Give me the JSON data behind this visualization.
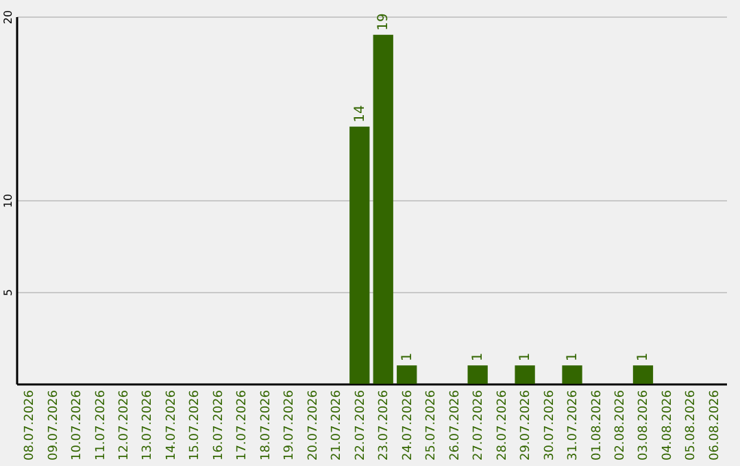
{
  "chart_data": {
    "type": "bar",
    "categories": [
      "08.07.2026",
      "09.07.2026",
      "10.07.2026",
      "11.07.2026",
      "12.07.2026",
      "13.07.2026",
      "14.07.2026",
      "15.07.2026",
      "16.07.2026",
      "17.07.2026",
      "18.07.2026",
      "19.07.2026",
      "20.07.2026",
      "21.07.2026",
      "22.07.2026",
      "23.07.2026",
      "24.07.2026",
      "25.07.2026",
      "26.07.2026",
      "27.07.2026",
      "28.07.2026",
      "29.07.2026",
      "30.07.2026",
      "31.07.2026",
      "01.08.2026",
      "02.08.2026",
      "03.08.2026",
      "04.08.2026",
      "05.08.2026",
      "06.08.2026"
    ],
    "values": [
      0,
      0,
      0,
      0,
      0,
      0,
      0,
      0,
      0,
      0,
      0,
      0,
      0,
      0,
      14,
      19,
      1,
      0,
      0,
      1,
      0,
      1,
      0,
      1,
      0,
      0,
      1,
      0,
      0,
      0
    ],
    "value_labels": [
      null,
      null,
      null,
      null,
      null,
      null,
      null,
      null,
      null,
      null,
      null,
      null,
      null,
      null,
      "14",
      "19",
      "1",
      null,
      null,
      "1",
      null,
      "1",
      null,
      "1",
      null,
      null,
      "1",
      null,
      null,
      null
    ],
    "color": "#336600",
    "ylim": [
      0,
      20
    ],
    "yticks": [
      5,
      10,
      20
    ],
    "grid": "y"
  }
}
